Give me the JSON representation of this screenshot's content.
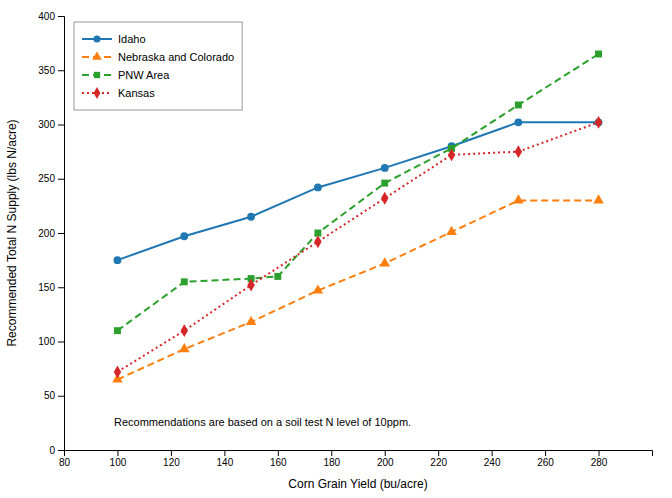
{
  "chart_data": {
    "type": "line",
    "xlabel": "Corn Grain Yield (bu/acre)",
    "ylabel": "Recommended Total N Supply (lbs N/acre)",
    "annotation": "Recommendations are based on a soil test N level of 10ppm.",
    "xlim": [
      80,
      300
    ],
    "ylim": [
      0,
      400
    ],
    "xticks": [
      80,
      100,
      120,
      140,
      160,
      180,
      200,
      220,
      240,
      260,
      280
    ],
    "yticks": [
      0,
      50,
      100,
      150,
      200,
      250,
      300,
      350,
      400
    ],
    "grid": false,
    "legend": "upper left",
    "series": [
      {
        "name": "Idaho",
        "x": [
          100,
          125,
          150,
          175,
          200,
          225,
          250,
          280
        ],
        "values": [
          175,
          197,
          215,
          242,
          260,
          280,
          302,
          302
        ],
        "marker": "circle",
        "line_style": "solid"
      },
      {
        "name": "Nebraska and Colorado",
        "x": [
          100,
          125,
          150,
          175,
          200,
          225,
          250,
          280
        ],
        "values": [
          65,
          93,
          118,
          147,
          172,
          201,
          230,
          230
        ],
        "marker": "triangle",
        "line_style": "dashed"
      },
      {
        "name": "PNW Area",
        "x": [
          100,
          125,
          150,
          160,
          175,
          200,
          225,
          250,
          280
        ],
        "values": [
          110,
          155,
          158,
          160,
          200,
          246,
          278,
          318,
          365
        ],
        "marker": "square",
        "line_style": "dashed"
      },
      {
        "name": "Kansas",
        "x": [
          100,
          125,
          150,
          175,
          200,
          225,
          250,
          280
        ],
        "values": [
          72,
          110,
          152,
          192,
          232,
          272,
          275,
          302
        ],
        "marker": "diamond",
        "line_style": "dotted"
      }
    ]
  }
}
